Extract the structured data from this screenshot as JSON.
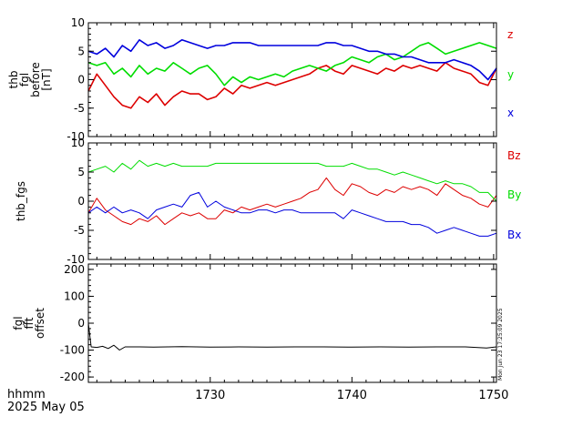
{
  "bottom_labels": {
    "line1": "hhmm",
    "line2": "2025 May 05"
  },
  "timestamp": "Mon Jun 23 17:25:09 2025",
  "colors": {
    "red": "#dd0000",
    "green": "#00dd00",
    "blue": "#0000dd",
    "black": "#000000"
  },
  "chart_data": [
    {
      "type": "line",
      "ylabel": [
        "thb",
        "fgl",
        "before",
        "[nT]"
      ],
      "ylim": [
        -10,
        10
      ],
      "yticks": [
        -10,
        -5,
        0,
        5,
        10
      ],
      "xlim": [
        1721.4,
        1750.2
      ],
      "series": [
        {
          "name": "z",
          "color": "#dd0000",
          "x": [
            1721.4,
            1722,
            1722.6,
            1723.2,
            1723.8,
            1724.4,
            1725,
            1725.6,
            1726.2,
            1726.8,
            1727.4,
            1728,
            1728.6,
            1729.2,
            1729.8,
            1730.4,
            1731,
            1731.6,
            1732.2,
            1732.8,
            1733.4,
            1734,
            1734.6,
            1735.2,
            1735.8,
            1736.4,
            1737,
            1737.6,
            1738.2,
            1738.8,
            1739.4,
            1740,
            1740.6,
            1741.2,
            1741.8,
            1742.4,
            1743,
            1743.6,
            1744.2,
            1744.8,
            1745.4,
            1746,
            1746.6,
            1747.2,
            1747.8,
            1748.4,
            1749,
            1749.6,
            1750.2
          ],
          "values": [
            -2,
            1,
            -1,
            -3,
            -4.5,
            -5,
            -3,
            -4,
            -2.5,
            -4.5,
            -3,
            -2,
            -2.5,
            -2.5,
            -3.5,
            -3,
            -1.5,
            -2.5,
            -1,
            -1.5,
            -1,
            -0.5,
            -1,
            -0.5,
            0,
            0.5,
            1,
            2,
            2.5,
            1.5,
            1,
            2.5,
            2,
            1.5,
            1,
            2,
            1.5,
            2.5,
            2,
            2.5,
            2,
            1.5,
            3,
            2,
            1.5,
            1,
            -0.5,
            -1,
            2
          ]
        },
        {
          "name": "y",
          "color": "#00dd00",
          "x": [
            1721.4,
            1722,
            1722.6,
            1723.2,
            1723.8,
            1724.4,
            1725,
            1725.6,
            1726.2,
            1726.8,
            1727.4,
            1728,
            1728.6,
            1729.2,
            1729.8,
            1730.4,
            1731,
            1731.6,
            1732.2,
            1732.8,
            1733.4,
            1734,
            1734.6,
            1735.2,
            1735.8,
            1736.4,
            1737,
            1737.6,
            1738.2,
            1738.8,
            1739.4,
            1740,
            1740.6,
            1741.2,
            1741.8,
            1742.4,
            1743,
            1743.6,
            1744.2,
            1744.8,
            1745.4,
            1746,
            1746.6,
            1747.2,
            1747.8,
            1748.4,
            1749,
            1749.6,
            1750.2
          ],
          "values": [
            3,
            2.5,
            3,
            1,
            2,
            0.5,
            2.5,
            1,
            2,
            1.5,
            3,
            2,
            1,
            2,
            2.5,
            1,
            -1,
            0.5,
            -0.5,
            0.5,
            0,
            0.5,
            1,
            0.5,
            1.5,
            2,
            2.5,
            2,
            1.5,
            2.5,
            3,
            4,
            3.5,
            3,
            4,
            4.5,
            3.5,
            4,
            5,
            6,
            6.5,
            5.5,
            4.5,
            5,
            5.5,
            6,
            6.5,
            6,
            5.5
          ]
        },
        {
          "name": "x",
          "color": "#0000dd",
          "x": [
            1721.4,
            1722,
            1722.6,
            1723.2,
            1723.8,
            1724.4,
            1725,
            1725.6,
            1726.2,
            1726.8,
            1727.4,
            1728,
            1728.6,
            1729.2,
            1729.8,
            1730.4,
            1731,
            1731.6,
            1732.2,
            1732.8,
            1733.4,
            1734,
            1734.6,
            1735.2,
            1735.8,
            1736.4,
            1737,
            1737.6,
            1738.2,
            1738.8,
            1739.4,
            1740,
            1740.6,
            1741.2,
            1741.8,
            1742.4,
            1743,
            1743.6,
            1744.2,
            1744.8,
            1745.4,
            1746,
            1746.6,
            1747.2,
            1747.8,
            1748.4,
            1749,
            1749.6,
            1750.2
          ],
          "values": [
            5,
            4.5,
            5.5,
            4,
            6,
            5,
            7,
            6,
            6.5,
            5.5,
            6,
            7,
            6.5,
            6,
            5.5,
            6,
            6,
            6.5,
            6.5,
            6.5,
            6,
            6,
            6,
            6,
            6,
            6,
            6,
            6,
            6.5,
            6.5,
            6,
            6,
            5.5,
            5,
            5,
            4.5,
            4.5,
            4,
            4,
            3.5,
            3,
            3,
            3,
            3.5,
            3,
            2.5,
            1.5,
            0,
            2
          ]
        }
      ]
    },
    {
      "type": "line",
      "ylabel": [
        "thb_fgs"
      ],
      "ylim": [
        -10,
        10
      ],
      "yticks": [
        -10,
        -5,
        0,
        5,
        10
      ],
      "xlim": [
        1721.4,
        1750.2
      ],
      "series": [
        {
          "name": "Bz",
          "color": "#dd0000",
          "x": [
            1721.4,
            1722,
            1722.6,
            1723.2,
            1723.8,
            1724.4,
            1725,
            1725.6,
            1726.2,
            1726.8,
            1727.4,
            1728,
            1728.6,
            1729.2,
            1729.8,
            1730.4,
            1731,
            1731.6,
            1732.2,
            1732.8,
            1733.4,
            1734,
            1734.6,
            1735.2,
            1735.8,
            1736.4,
            1737,
            1737.6,
            1738.2,
            1738.8,
            1739.4,
            1740,
            1740.6,
            1741.2,
            1741.8,
            1742.4,
            1743,
            1743.6,
            1744.2,
            1744.8,
            1745.4,
            1746,
            1746.6,
            1747.2,
            1747.8,
            1748.4,
            1749,
            1749.6,
            1750.2
          ],
          "values": [
            -2,
            0.5,
            -1.5,
            -2.5,
            -3.5,
            -4,
            -3,
            -3.5,
            -2.5,
            -4,
            -3,
            -2,
            -2.5,
            -2,
            -3,
            -3,
            -1.5,
            -2,
            -1,
            -1.5,
            -1,
            -0.5,
            -1,
            -0.5,
            0,
            0.5,
            1.5,
            2,
            4,
            2,
            1,
            3,
            2.5,
            1.5,
            1,
            2,
            1.5,
            2.5,
            2,
            2.5,
            2,
            1,
            3,
            2,
            1,
            0.5,
            -0.5,
            -1,
            1
          ]
        },
        {
          "name": "By",
          "color": "#00dd00",
          "x": [
            1721.4,
            1722,
            1722.6,
            1723.2,
            1723.8,
            1724.4,
            1725,
            1725.6,
            1726.2,
            1726.8,
            1727.4,
            1728,
            1728.6,
            1729.2,
            1729.8,
            1730.4,
            1731,
            1731.6,
            1732.2,
            1732.8,
            1733.4,
            1734,
            1734.6,
            1735.2,
            1735.8,
            1736.4,
            1737,
            1737.6,
            1738.2,
            1738.8,
            1739.4,
            1740,
            1740.6,
            1741.2,
            1741.8,
            1742.4,
            1743,
            1743.6,
            1744.2,
            1744.8,
            1745.4,
            1746,
            1746.6,
            1747.2,
            1747.8,
            1748.4,
            1749,
            1749.6,
            1750.2
          ],
          "values": [
            5,
            5.5,
            6,
            5,
            6.5,
            5.5,
            7,
            6,
            6.5,
            6,
            6.5,
            6,
            6,
            6,
            6,
            6.5,
            6.5,
            6.5,
            6.5,
            6.5,
            6.5,
            6.5,
            6.5,
            6.5,
            6.5,
            6.5,
            6.5,
            6.5,
            6,
            6,
            6,
            6.5,
            6,
            5.5,
            5.5,
            5,
            4.5,
            5,
            4.5,
            4,
            3.5,
            3,
            3.5,
            3,
            3,
            2.5,
            1.5,
            1.5,
            0
          ]
        },
        {
          "name": "Bx",
          "color": "#0000dd",
          "x": [
            1721.4,
            1722,
            1722.6,
            1723.2,
            1723.8,
            1724.4,
            1725,
            1725.6,
            1726.2,
            1726.8,
            1727.4,
            1728,
            1728.6,
            1729.2,
            1729.8,
            1730.4,
            1731,
            1731.6,
            1732.2,
            1732.8,
            1733.4,
            1734,
            1734.6,
            1735.2,
            1735.8,
            1736.4,
            1737,
            1737.6,
            1738.2,
            1738.8,
            1739.4,
            1740,
            1740.6,
            1741.2,
            1741.8,
            1742.4,
            1743,
            1743.6,
            1744.2,
            1744.8,
            1745.4,
            1746,
            1746.6,
            1747.2,
            1747.8,
            1748.4,
            1749,
            1749.6,
            1750.2
          ],
          "values": [
            -2,
            -1,
            -2,
            -1,
            -2,
            -1.5,
            -2,
            -3,
            -1.5,
            -1,
            -0.5,
            -1,
            1,
            1.5,
            -1,
            0,
            -1,
            -1.5,
            -2,
            -2,
            -1.5,
            -1.5,
            -2,
            -1.5,
            -1.5,
            -2,
            -2,
            -2,
            -2,
            -2,
            -3,
            -1.5,
            -2,
            -2.5,
            -3,
            -3.5,
            -3.5,
            -3.5,
            -4,
            -4,
            -4.5,
            -5.5,
            -5,
            -4.5,
            -5,
            -5.5,
            -6,
            -6,
            -5.5
          ]
        }
      ]
    },
    {
      "type": "line",
      "ylabel": [
        "fgl",
        "fft",
        "offset"
      ],
      "ylim": [
        -220,
        220
      ],
      "yticks": [
        -200,
        -100,
        0,
        100,
        200
      ],
      "xlim": [
        1721.4,
        1750.2
      ],
      "xticks": [
        1730,
        1740,
        1750
      ],
      "series": [
        {
          "name": "",
          "color": "#000000",
          "x": [
            1721.4,
            1721.6,
            1722,
            1722.4,
            1722.8,
            1723.2,
            1723.6,
            1724,
            1725,
            1726,
            1727,
            1728,
            1730,
            1732,
            1734,
            1736,
            1738,
            1740,
            1742,
            1744,
            1746,
            1748,
            1749.5,
            1750.2
          ],
          "values": [
            0,
            -88,
            -90,
            -86,
            -94,
            -82,
            -100,
            -88,
            -88,
            -89,
            -88,
            -87,
            -89,
            -88,
            -89,
            -88,
            -88,
            -89,
            -88,
            -89,
            -88,
            -88,
            -92,
            -88
          ]
        }
      ]
    }
  ]
}
